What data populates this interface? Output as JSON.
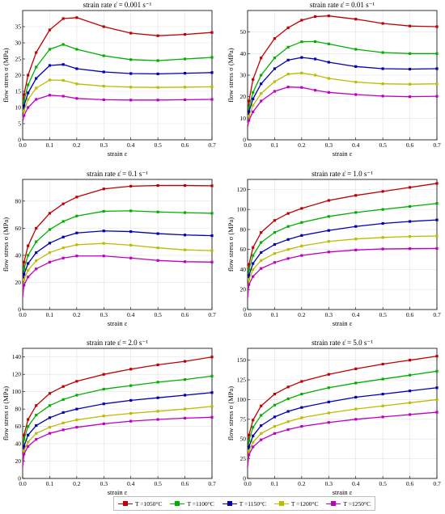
{
  "legend": [
    {
      "label": "T =1050°C",
      "color": "#c00000"
    },
    {
      "label": "T =1100°C",
      "color": "#00b000"
    },
    {
      "label": "T =1150°C",
      "color": "#0000b4"
    },
    {
      "label": "T =1200°C",
      "color": "#bcbc00"
    },
    {
      "label": "T =1250°C",
      "color": "#c000c0"
    }
  ],
  "chart_data": [
    {
      "type": "line",
      "title": "strain rate ε̇ = 0.001 s⁻¹",
      "xlabel": "strain ε",
      "ylabel": "flow stress σ (MPa)",
      "xlim": [
        0,
        0.7
      ],
      "ylim": [
        0,
        40
      ],
      "xticks": [
        "0.0",
        "0.1",
        "0.2",
        "0.3",
        "0.4",
        "0.5",
        "0.6",
        "0.7"
      ],
      "yticks": [
        "0",
        "5",
        "10",
        "15",
        "20",
        "25",
        "30",
        "35"
      ],
      "grid": true,
      "x": [
        0,
        0.005,
        0.02,
        0.05,
        0.1,
        0.15,
        0.2,
        0.3,
        0.4,
        0.5,
        0.6,
        0.7
      ],
      "series": [
        {
          "name": "T =1050°C",
          "values": [
            9,
            14,
            20,
            27,
            34,
            37.5,
            37.8,
            35,
            33,
            32.2,
            32.6,
            33.2
          ]
        },
        {
          "name": "T =1100°C",
          "values": [
            8,
            12,
            17,
            22.5,
            28,
            29.5,
            28,
            26,
            24.8,
            24.5,
            25,
            25.5
          ]
        },
        {
          "name": "T =1150°C",
          "values": [
            7,
            10.5,
            14.5,
            19,
            23,
            23.3,
            22,
            21,
            20.5,
            20.4,
            20.6,
            20.8
          ]
        },
        {
          "name": "T =1200°C",
          "values": [
            6.5,
            9,
            12.5,
            16,
            18.5,
            18.4,
            17.3,
            16.6,
            16.3,
            16.2,
            16.3,
            16.4
          ]
        },
        {
          "name": "T =1250°C",
          "values": [
            5.5,
            7.5,
            10,
            12.5,
            13.8,
            13.5,
            12.8,
            12.4,
            12.3,
            12.3,
            12.4,
            12.5
          ]
        }
      ]
    },
    {
      "type": "line",
      "title": "strain rate ε̇ = 0.01 s⁻¹",
      "xlabel": "strain ε",
      "ylabel": "flow stress σ (MPa)",
      "xlim": [
        0,
        0.7
      ],
      "ylim": [
        0,
        60
      ],
      "xticks": [
        "0.0",
        "0.1",
        "0.2",
        "0.3",
        "0.4",
        "0.5",
        "0.6",
        "0.7"
      ],
      "yticks": [
        "0",
        "10",
        "20",
        "30",
        "40",
        "50"
      ],
      "grid": true,
      "x": [
        0,
        0.005,
        0.02,
        0.05,
        0.1,
        0.15,
        0.2,
        0.25,
        0.3,
        0.4,
        0.5,
        0.6,
        0.7
      ],
      "series": [
        {
          "name": "T =1050°C",
          "values": [
            10,
            18,
            28,
            38,
            47,
            52,
            55.5,
            57.2,
            57.5,
            56,
            54,
            52.8,
            52.5
          ]
        },
        {
          "name": "T =1100°C",
          "values": [
            9,
            15,
            22,
            30,
            38,
            43,
            45.5,
            45.6,
            44.5,
            42,
            40.5,
            40,
            40
          ]
        },
        {
          "name": "T =1150°C",
          "values": [
            8,
            13,
            19,
            26,
            33,
            37,
            38.2,
            37.5,
            36,
            34,
            33,
            32.8,
            33
          ]
        },
        {
          "name": "T =1200°C",
          "values": [
            7,
            11,
            16,
            21.5,
            27,
            30.5,
            31,
            30,
            28.5,
            26.8,
            26,
            25.8,
            26
          ]
        },
        {
          "name": "T =1250°C",
          "values": [
            6,
            9,
            13,
            18,
            22.5,
            24.5,
            24.3,
            23,
            22,
            21,
            20.3,
            20,
            20.2
          ]
        }
      ]
    },
    {
      "type": "line",
      "title": "strain rate ε̇ = 0.1 s⁻¹",
      "xlabel": "strain ε",
      "ylabel": "flow stress σ (MPa)",
      "xlim": [
        0,
        0.7
      ],
      "ylim": [
        0,
        96
      ],
      "xticks": [
        "0.0",
        "0.1",
        "0.2",
        "0.3",
        "0.4",
        "0.5",
        "0.6",
        "0.7"
      ],
      "yticks": [
        "0",
        "20",
        "40",
        "60",
        "80"
      ],
      "grid": true,
      "x": [
        0,
        0.005,
        0.02,
        0.05,
        0.1,
        0.15,
        0.2,
        0.3,
        0.4,
        0.5,
        0.6,
        0.7
      ],
      "series": [
        {
          "name": "T =1050°C",
          "values": [
            15,
            35,
            47,
            60,
            71,
            78,
            83,
            89,
            91,
            91.5,
            91.5,
            91.3
          ]
        },
        {
          "name": "T =1100°C",
          "values": [
            13,
            30,
            40,
            50,
            59,
            65,
            69,
            72.5,
            72.8,
            72,
            71.5,
            71
          ]
        },
        {
          "name": "T =1150°C",
          "values": [
            11,
            26,
            34,
            42,
            49,
            53.5,
            56.5,
            58,
            57.5,
            56,
            55,
            54.5
          ]
        },
        {
          "name": "T =1200°C",
          "values": [
            10,
            22,
            29,
            36,
            42,
            45.5,
            47.8,
            48.8,
            47.5,
            45.5,
            44,
            43.5
          ]
        },
        {
          "name": "T =1250°C",
          "values": [
            9,
            18,
            24,
            30,
            35,
            38,
            39.5,
            39.5,
            38,
            36.2,
            35.3,
            35
          ]
        }
      ]
    },
    {
      "type": "line",
      "title": "strain rate ε̇ = 1.0 s⁻¹",
      "xlabel": "strain ε",
      "ylabel": "flow stress σ (MPa)",
      "xlim": [
        0,
        0.7
      ],
      "ylim": [
        0,
        130
      ],
      "xticks": [
        "0.0",
        "0.1",
        "0.2",
        "0.3",
        "0.4",
        "0.5",
        "0.6",
        "0.7"
      ],
      "yticks": [
        "0",
        "20",
        "40",
        "60",
        "80",
        "100",
        "120"
      ],
      "grid": true,
      "x": [
        0,
        0.005,
        0.02,
        0.05,
        0.1,
        0.15,
        0.2,
        0.3,
        0.4,
        0.5,
        0.6,
        0.7
      ],
      "series": [
        {
          "name": "T =1050°C",
          "values": [
            20,
            45,
            62,
            77,
            89,
            96,
            101,
            109,
            114,
            118,
            122,
            126
          ]
        },
        {
          "name": "T =1100°C",
          "values": [
            18,
            40,
            54,
            67,
            77,
            83,
            87,
            93,
            97,
            100,
            103,
            106
          ]
        },
        {
          "name": "T =1150°C",
          "values": [
            15,
            34,
            46,
            57,
            65,
            70,
            74,
            79,
            83,
            86,
            88,
            89.5
          ]
        },
        {
          "name": "T =1200°C",
          "values": [
            13,
            30,
            40,
            49,
            56,
            60,
            63.5,
            68,
            70.5,
            72,
            73,
            73.5
          ]
        },
        {
          "name": "T =1250°C",
          "values": [
            11,
            25,
            33,
            41,
            47,
            51,
            54,
            57.5,
            59.5,
            60.5,
            60.8,
            61
          ]
        }
      ]
    },
    {
      "type": "line",
      "title": "strain rate ε̇ = 2.0 s⁻¹",
      "xlabel": "strain ε",
      "ylabel": "flow stress σ (MPa)",
      "xlim": [
        0,
        0.7
      ],
      "ylim": [
        0,
        150
      ],
      "xticks": [
        "0.0",
        "0.1",
        "0.2",
        "0.3",
        "0.4",
        "0.5",
        "0.6",
        "0.7"
      ],
      "yticks": [
        "0",
        "20",
        "40",
        "60",
        "80",
        "100",
        "120",
        "140"
      ],
      "grid": true,
      "x": [
        0,
        0.005,
        0.02,
        0.05,
        0.1,
        0.15,
        0.2,
        0.3,
        0.4,
        0.5,
        0.6,
        0.7
      ],
      "series": [
        {
          "name": "T =1050°C",
          "values": [
            22,
            50,
            68,
            84,
            98,
            106,
            112,
            120,
            126,
            131,
            135,
            140
          ]
        },
        {
          "name": "T =1100°C",
          "values": [
            20,
            45,
            60,
            73,
            84,
            91,
            96,
            103,
            107,
            111,
            114,
            118
          ]
        },
        {
          "name": "T =1150°C",
          "values": [
            17,
            37,
            50,
            61,
            70,
            76,
            80,
            86,
            90,
            93,
            96,
            99
          ]
        },
        {
          "name": "T =1200°C",
          "values": [
            15,
            32,
            42,
            52,
            59,
            64,
            67.5,
            72,
            75,
            77.5,
            80,
            83
          ]
        },
        {
          "name": "T =1250°C",
          "values": [
            13,
            28,
            37,
            45,
            52,
            56,
            59,
            63,
            66,
            68,
            69.5,
            70.5
          ]
        }
      ]
    },
    {
      "type": "line",
      "title": "strain rate ε̇ = 5.0 s⁻¹",
      "xlabel": "strain ε",
      "ylabel": "flow stress σ (MPa)",
      "xlim": [
        0,
        0.7
      ],
      "ylim": [
        0,
        165
      ],
      "xticks": [
        "0.0",
        "0.1",
        "0.2",
        "0.3",
        "0.4",
        "0.5",
        "0.6",
        "0.7"
      ],
      "yticks": [
        "0",
        "25",
        "50",
        "75",
        "100",
        "125",
        "150"
      ],
      "grid": true,
      "x": [
        0,
        0.005,
        0.02,
        0.05,
        0.1,
        0.15,
        0.2,
        0.3,
        0.4,
        0.5,
        0.6,
        0.7
      ],
      "series": [
        {
          "name": "T =1050°C",
          "values": [
            25,
            55,
            74,
            92,
            107,
            116,
            123,
            132,
            139,
            145,
            150,
            155
          ]
        },
        {
          "name": "T =1100°C",
          "values": [
            22,
            48,
            65,
            80,
            93,
            101,
            107,
            115,
            121,
            126,
            131,
            136
          ]
        },
        {
          "name": "T =1150°C",
          "values": [
            19,
            40,
            54,
            67,
            78,
            85,
            90,
            97,
            103,
            107,
            111,
            115
          ]
        },
        {
          "name": "T =1200°C",
          "values": [
            16,
            35,
            46,
            57,
            66,
            72,
            77,
            83,
            88,
            92,
            96,
            100
          ]
        },
        {
          "name": "T =1250°C",
          "values": [
            14,
            30,
            40,
            49,
            57,
            62,
            66,
            71,
            75,
            78,
            81,
            84
          ]
        }
      ]
    }
  ]
}
